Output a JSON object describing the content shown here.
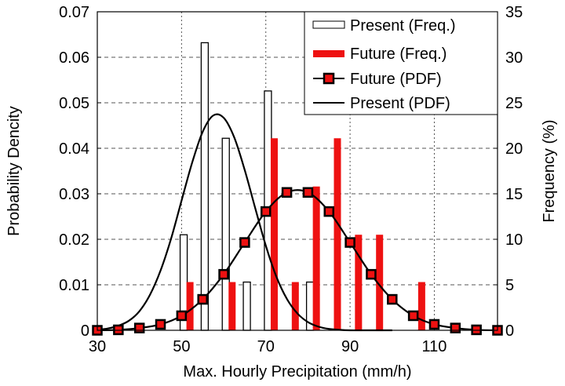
{
  "chart_data": {
    "type": "bar+line",
    "title": "",
    "xlabel": "Max. Hourly Precipitation (mm/h)",
    "ylabel_left": "Probability Dencity",
    "ylabel_right": "Frequency (%)",
    "xlim": [
      30,
      125
    ],
    "ylim_left": [
      0,
      0.07
    ],
    "ylim_right": [
      0,
      35
    ],
    "xticks": [
      "30",
      "50",
      "70",
      "90",
      "110"
    ],
    "yticks_left": [
      "0",
      "0.01",
      "0.02",
      "0.03",
      "0.04",
      "0.05",
      "0.06",
      "0.07"
    ],
    "yticks_right": [
      "0",
      "5",
      "10",
      "15",
      "20",
      "25",
      "30",
      "35"
    ],
    "grid": true,
    "legend_position": "top-right",
    "colors": {
      "future": "#ee1111",
      "present": "#000000"
    },
    "series": [
      {
        "name": "Present (Freq.)",
        "kind": "bar",
        "axis": "right",
        "x": [
          50,
          55,
          60,
          65,
          70,
          80
        ],
        "values": [
          10.5,
          31.6,
          21.1,
          5.3,
          26.3,
          5.3
        ]
      },
      {
        "name": "Future (Freq.)",
        "kind": "bar",
        "axis": "right",
        "x": [
          50,
          60,
          70,
          75,
          80,
          85,
          90,
          95,
          105
        ],
        "values": [
          5.3,
          5.3,
          21.1,
          5.3,
          15.8,
          21.1,
          10.5,
          10.5,
          5.3
        ]
      },
      {
        "name": "Future (PDF)",
        "kind": "line-marker",
        "axis": "left",
        "x": [
          30,
          35,
          40,
          45,
          50,
          55,
          60,
          65,
          70,
          75,
          80,
          85,
          90,
          95,
          100,
          105,
          110,
          115,
          120,
          125
        ],
        "values": [
          0.0,
          0.0001,
          0.0005,
          0.0013,
          0.0032,
          0.0068,
          0.0123,
          0.0193,
          0.0261,
          0.0303,
          0.0303,
          0.0261,
          0.0193,
          0.0123,
          0.0068,
          0.0032,
          0.0013,
          0.0005,
          0.0001,
          0.0
        ]
      },
      {
        "name": "Present (PDF)",
        "kind": "line",
        "axis": "left",
        "x": [
          30,
          32.5,
          35,
          37.5,
          40,
          42.5,
          45,
          47.5,
          50,
          52.5,
          55,
          57.5,
          60,
          62.5,
          65,
          67.5,
          70,
          72.5,
          75,
          77.5,
          80,
          82.5,
          85,
          87.5,
          90,
          95,
          100
        ],
        "values": [
          0.0001,
          0.0004,
          0.001,
          0.0021,
          0.0042,
          0.0078,
          0.0131,
          0.0201,
          0.0285,
          0.0368,
          0.0436,
          0.0472,
          0.0467,
          0.0424,
          0.0352,
          0.0268,
          0.0186,
          0.0118,
          0.0069,
          0.0037,
          0.0018,
          0.0008,
          0.0003,
          0.0001,
          0.0,
          0.0,
          0.0
        ]
      }
    ]
  }
}
